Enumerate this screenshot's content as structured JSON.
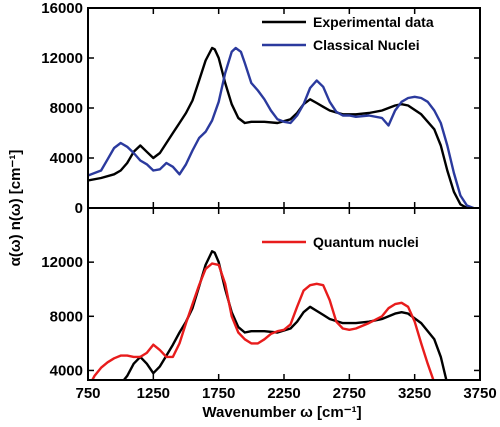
{
  "chart_data": [
    {
      "type": "line",
      "panel": "top",
      "xlim": [
        750,
        3750
      ],
      "ylim": [
        0,
        16000
      ],
      "yticks": [
        "0",
        "4000",
        "8000",
        "12000",
        "16000"
      ],
      "grid": false,
      "legend_placement": "top-right",
      "series": [
        {
          "name": "Experimental data",
          "color": "#000000",
          "x": [
            750,
            850,
            950,
            1000,
            1050,
            1100,
            1150,
            1200,
            1250,
            1300,
            1350,
            1400,
            1450,
            1500,
            1550,
            1600,
            1650,
            1700,
            1720,
            1750,
            1800,
            1850,
            1900,
            1950,
            2000,
            2100,
            2200,
            2300,
            2350,
            2400,
            2450,
            2500,
            2550,
            2600,
            2700,
            2800,
            2900,
            3000,
            3100,
            3150,
            3200,
            3300,
            3400,
            3450,
            3500,
            3550,
            3600,
            3650
          ],
          "values": [
            2200,
            2400,
            2700,
            3000,
            3600,
            4500,
            5000,
            4500,
            4000,
            4400,
            5200,
            6000,
            6800,
            7600,
            8600,
            10200,
            11800,
            12800,
            12700,
            12000,
            10000,
            8300,
            7200,
            6800,
            6900,
            6900,
            6800,
            7100,
            7600,
            8300,
            8700,
            8400,
            8100,
            7800,
            7500,
            7500,
            7600,
            7800,
            8200,
            8300,
            8200,
            7500,
            6300,
            5000,
            3000,
            1300,
            300,
            0
          ]
        },
        {
          "name": "Classical Nuclei",
          "color": "#2b3a9e",
          "x": [
            750,
            850,
            900,
            950,
            1000,
            1050,
            1100,
            1150,
            1200,
            1250,
            1300,
            1350,
            1400,
            1450,
            1500,
            1550,
            1600,
            1650,
            1700,
            1750,
            1800,
            1850,
            1880,
            1920,
            1950,
            2000,
            2050,
            2100,
            2150,
            2200,
            2250,
            2300,
            2350,
            2400,
            2450,
            2500,
            2550,
            2600,
            2650,
            2700,
            2750,
            2800,
            2900,
            3000,
            3050,
            3100,
            3150,
            3200,
            3250,
            3300,
            3350,
            3400,
            3450,
            3500,
            3550,
            3600,
            3650,
            3700
          ],
          "values": [
            2600,
            3000,
            3900,
            4800,
            5200,
            4900,
            4400,
            3800,
            3500,
            3000,
            3100,
            3600,
            3300,
            2700,
            3500,
            4600,
            5600,
            6100,
            7000,
            8500,
            10800,
            12500,
            12800,
            12500,
            11600,
            10000,
            9400,
            8700,
            7800,
            7100,
            6900,
            6800,
            7400,
            8300,
            9600,
            10200,
            9700,
            8500,
            7700,
            7400,
            7400,
            7300,
            7400,
            7200,
            6600,
            7800,
            8500,
            8800,
            8900,
            8800,
            8500,
            7800,
            6800,
            5000,
            2800,
            1000,
            200,
            0
          ]
        }
      ]
    },
    {
      "type": "line",
      "panel": "bottom",
      "xlim": [
        750,
        3750
      ],
      "xticks": [
        "750",
        "1250",
        "1750",
        "2250",
        "2750",
        "3250",
        "3750"
      ],
      "ylim": [
        0,
        16000
      ],
      "yticks": [
        "4000",
        "8000",
        "12000"
      ],
      "grid": false,
      "legend_placement": "top-right",
      "series": [
        {
          "name": "Experimental data",
          "color": "#000000",
          "x": [
            750,
            850,
            950,
            1000,
            1050,
            1100,
            1150,
            1200,
            1250,
            1300,
            1350,
            1400,
            1450,
            1500,
            1550,
            1600,
            1650,
            1700,
            1720,
            1750,
            1800,
            1850,
            1900,
            1950,
            2000,
            2100,
            2200,
            2300,
            2350,
            2400,
            2450,
            2500,
            2550,
            2600,
            2700,
            2800,
            2900,
            3000,
            3100,
            3150,
            3200,
            3300,
            3400,
            3450,
            3500,
            3550,
            3600,
            3650
          ],
          "values": [
            2200,
            2400,
            2700,
            3000,
            3600,
            4500,
            5000,
            4500,
            3800,
            4300,
            5100,
            5900,
            6800,
            7600,
            8600,
            10200,
            11800,
            12800,
            12700,
            12000,
            10000,
            8300,
            7200,
            6800,
            6900,
            6900,
            6800,
            7100,
            7600,
            8300,
            8700,
            8400,
            8100,
            7800,
            7500,
            7500,
            7600,
            7800,
            8200,
            8300,
            8200,
            7500,
            6300,
            5000,
            3000,
            1300,
            300,
            0
          ]
        },
        {
          "name": "Quantum nuclei",
          "color": "#e81c1c",
          "x": [
            750,
            800,
            850,
            900,
            950,
            1000,
            1050,
            1100,
            1150,
            1200,
            1250,
            1300,
            1350,
            1400,
            1450,
            1500,
            1550,
            1600,
            1650,
            1700,
            1750,
            1800,
            1850,
            1900,
            1950,
            2000,
            2050,
            2100,
            2150,
            2200,
            2250,
            2300,
            2350,
            2400,
            2450,
            2500,
            2550,
            2600,
            2650,
            2700,
            2750,
            2800,
            2900,
            3000,
            3050,
            3100,
            3150,
            3200,
            3250,
            3300,
            3350,
            3400,
            3450,
            3500,
            3550,
            3600,
            3650,
            3700,
            3750
          ],
          "values": [
            2700,
            3600,
            4200,
            4600,
            4900,
            5100,
            5100,
            5000,
            5000,
            5300,
            5900,
            5500,
            5000,
            5000,
            6000,
            7500,
            8900,
            10300,
            11500,
            11900,
            11800,
            10400,
            8000,
            6800,
            6300,
            6000,
            6000,
            6300,
            6700,
            6900,
            7000,
            7400,
            8700,
            9900,
            10300,
            10400,
            10300,
            9200,
            7600,
            7100,
            7000,
            7100,
            7500,
            8000,
            8600,
            8900,
            9000,
            8700,
            7600,
            6000,
            4500,
            3100,
            1800,
            1000,
            700,
            500,
            400,
            300,
            200
          ]
        }
      ]
    }
  ],
  "axes": {
    "xlabel": "Wavenumber ω [cm⁻¹]",
    "ylabel": "α(ω) n(ω) [cm⁻¹]"
  }
}
